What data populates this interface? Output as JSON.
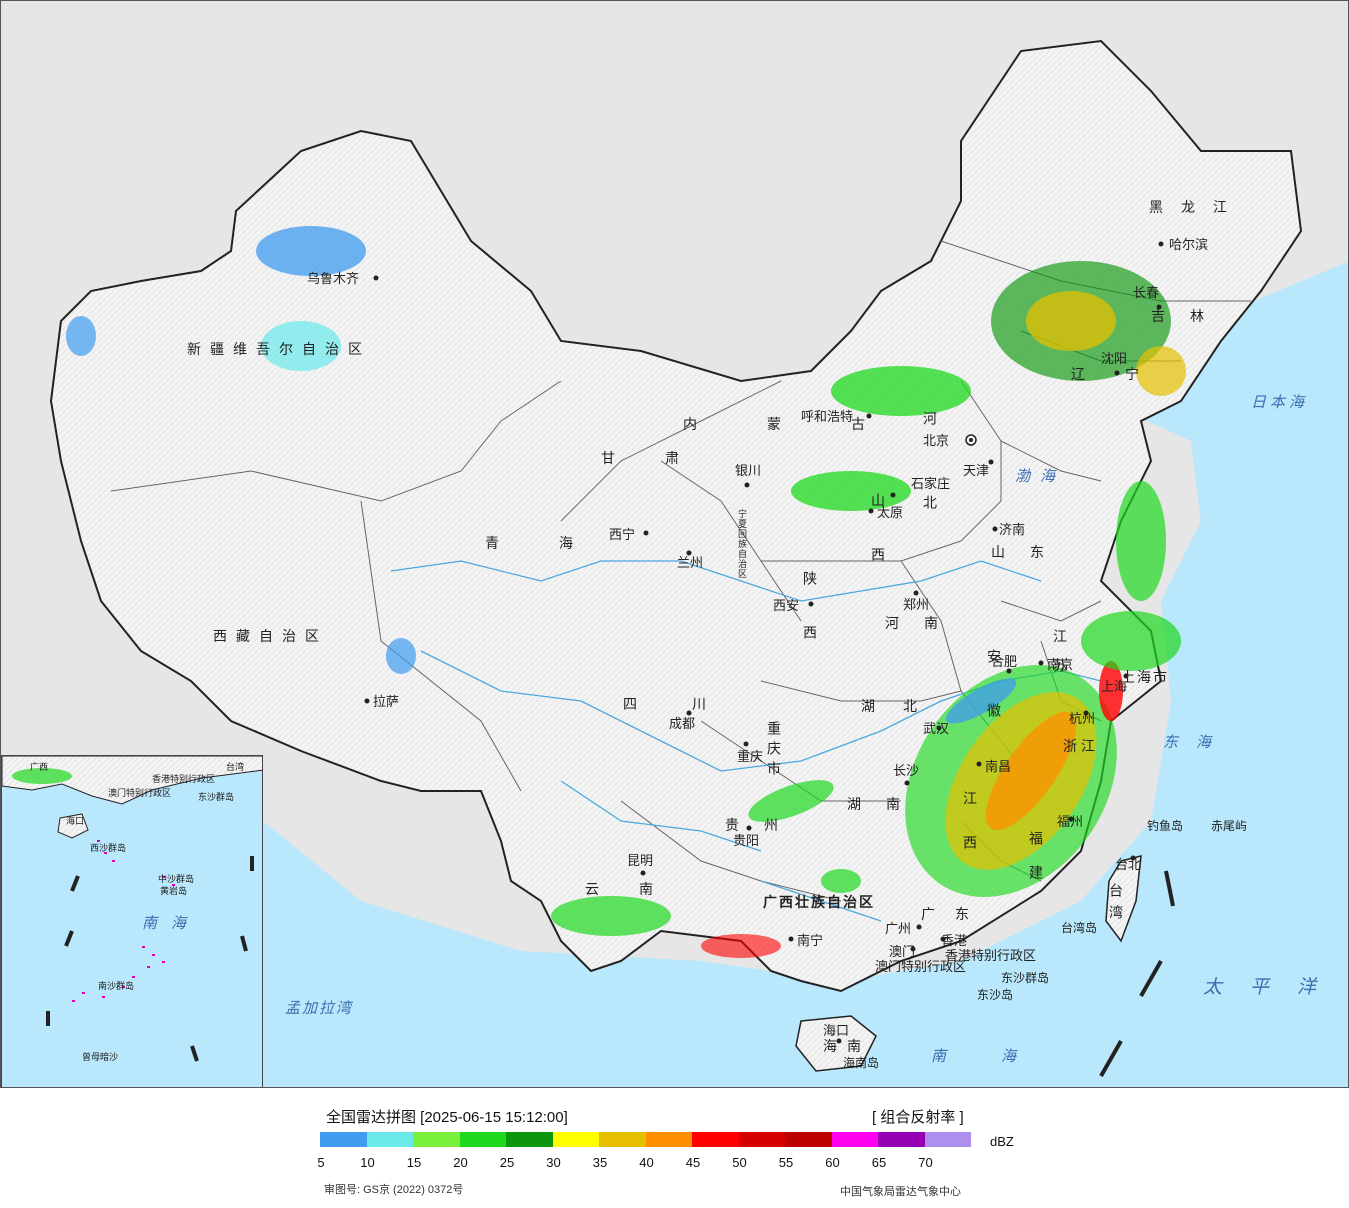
{
  "legend": {
    "title": "全国雷达拼图 [2025-06-15 15:12:00]",
    "product": "[ 组合反射率 ]",
    "unit": "dBZ",
    "approval": "审图号: GS京 (2022) 0372号",
    "source": "中国气象局雷达气象中心",
    "colors": [
      "#3f9cf0",
      "#6ae8ea",
      "#7af03c",
      "#1ed91e",
      "#0c960c",
      "#ffff00",
      "#e6c000",
      "#ff8f00",
      "#ff0000",
      "#d60000",
      "#bd0000",
      "#ff00f0",
      "#9600b4",
      "#ae8fee"
    ],
    "ticks": [
      "5",
      "10",
      "15",
      "20",
      "25",
      "30",
      "35",
      "40",
      "45",
      "50",
      "55",
      "60",
      "65",
      "70"
    ]
  },
  "regions": {
    "xinjiang": "新疆维吾尔自治区",
    "xizang": "西藏自治区",
    "qinghai": "青海",
    "gansu": "甘肃",
    "neimeng": "内蒙古",
    "ningxia": "宁夏回族自治区",
    "shaanxi": "陕西",
    "shanxi": "山西",
    "hebei": "河北",
    "henan": "河南",
    "shandong": "山东",
    "sichuan": "四川",
    "chongqing": "重庆市",
    "hubei": "湖北",
    "hunan": "湖南",
    "guizhou": "贵州",
    "yunnan": "云南",
    "guangxi": "广西壮族自治区",
    "guangdong": "广东",
    "jiangxi": "江西",
    "fujian": "福建",
    "zhejiang": "浙江",
    "anhui": "安徽",
    "jiangsu": "江苏",
    "shanghai": "上海市",
    "heilongjiang": "黑龙江",
    "jilin": "吉林",
    "liaoning": "辽宁",
    "hainan": "海南",
    "taiwan": "台湾",
    "hongkong": "香港特别行政区",
    "macau": "澳门特别行政区"
  },
  "cities": {
    "urumqi": "乌鲁木齐",
    "lhasa": "拉萨",
    "xining": "西宁",
    "lanzhou": "兰州",
    "yinchuan": "银川",
    "hohhot": "呼和浩特",
    "beijing": "北京",
    "tianjin": "天津",
    "shijiazhuang": "石家庄",
    "taiyuan": "太原",
    "jinan": "济南",
    "zhengzhou": "郑州",
    "xian": "西安",
    "chengdu": "成都",
    "chongqing": "重庆",
    "wuhan": "武汉",
    "changsha": "长沙",
    "guiyang": "贵阳",
    "kunming": "昆明",
    "nanning": "南宁",
    "guangzhou": "广州",
    "hongkong": "香港",
    "macau": "澳门",
    "haikou": "海口",
    "nanchang": "南昌",
    "fuzhou": "福州",
    "hangzhou": "杭州",
    "hefei": "合肥",
    "nanjing": "南京",
    "shanghai": "上海",
    "taipei": "台北",
    "harbin": "哈尔滨",
    "changchun": "长春",
    "shenyang": "沈阳"
  },
  "seas": {
    "bohai": "渤海",
    "sea_of_japan": "日本海",
    "east_china_sea": "东海",
    "south_china_sea": "南海",
    "pacific": "太平洋",
    "bay_of_bengal": "孟加拉湾"
  },
  "islands": {
    "diaoyu": "钓鱼岛",
    "chiwei": "赤尾屿",
    "taiwan_island": "台湾岛",
    "dongsha_islands": "东沙群岛",
    "dongsha_island": "东沙岛",
    "hainan_island": "海南岛"
  },
  "inset": {
    "south_china_sea": "南海",
    "xisha": "西沙群岛",
    "zhongsha": "中沙群岛",
    "nansha": "南沙群岛",
    "huangyan": "黄岩岛",
    "zengmu": "曾母暗沙",
    "dongsha": "东沙群岛",
    "haikou": "海口",
    "hongkong": "香港特别行政区",
    "macau": "澳门特别行政区",
    "taiwan": "台湾",
    "guangxi": "广西"
  }
}
